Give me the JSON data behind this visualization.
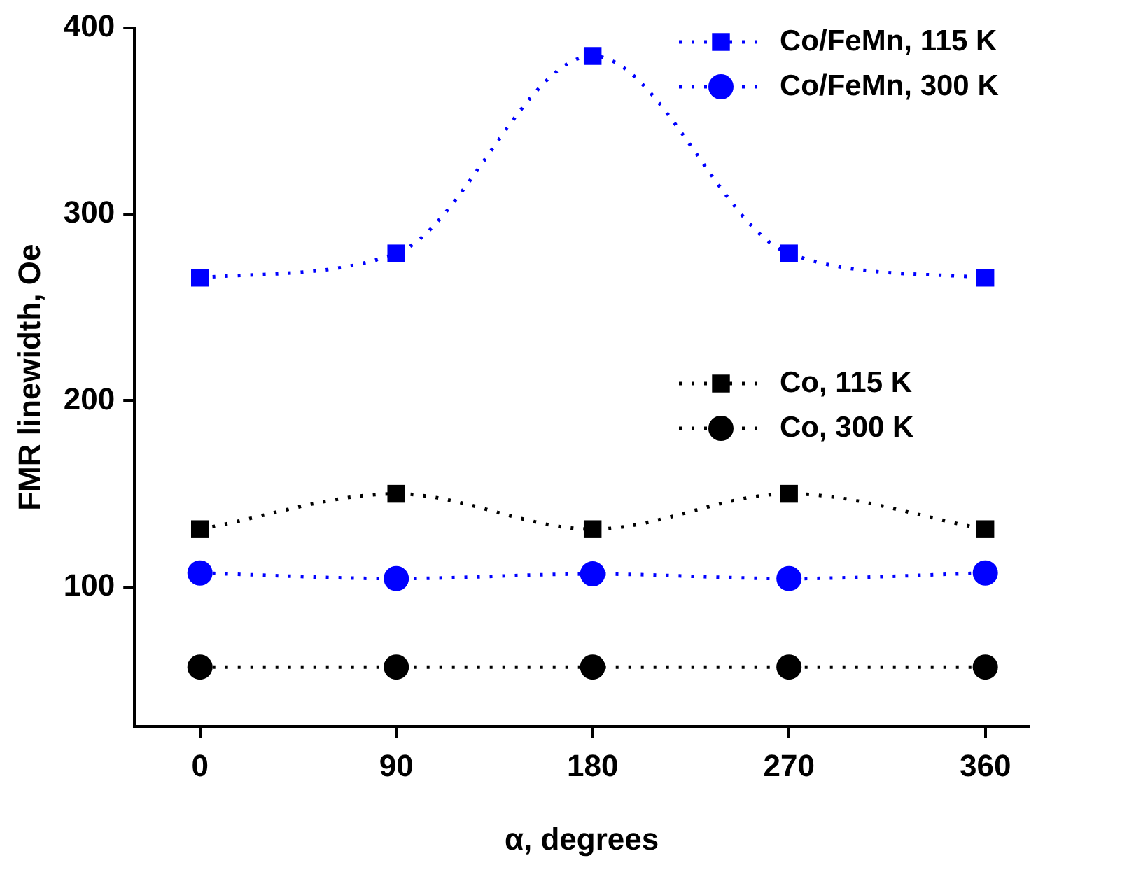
{
  "chart_data": {
    "type": "line",
    "xlabel": "α, degrees",
    "ylabel": "FMR linewidth, Oe",
    "x": [
      0,
      90,
      180,
      270,
      360
    ],
    "xlim": [
      -30,
      380
    ],
    "xticks": [
      0,
      90,
      180,
      270,
      360
    ],
    "ylim": [
      25,
      400
    ],
    "yticks": [
      100,
      200,
      300,
      400
    ],
    "grid": false,
    "legend": "top right",
    "line_style": "dotted",
    "series": [
      {
        "name": "Co/FeMn, 115 K",
        "color": "#0000ff",
        "marker": "square",
        "values": [
          266,
          279,
          385,
          279,
          266
        ]
      },
      {
        "name": "Co/FeMn, 300 K",
        "color": "#0000ff",
        "marker": "circle",
        "values": [
          107.5,
          104.5,
          107,
          104.5,
          107.5
        ]
      },
      {
        "name": "Co, 115 K",
        "color": "#000000",
        "marker": "square",
        "values": [
          131,
          150,
          131,
          150,
          131
        ]
      },
      {
        "name": "Co, 300 K",
        "color": "#000000",
        "marker": "circle",
        "values": [
          57,
          57,
          57,
          57,
          57
        ]
      }
    ]
  }
}
